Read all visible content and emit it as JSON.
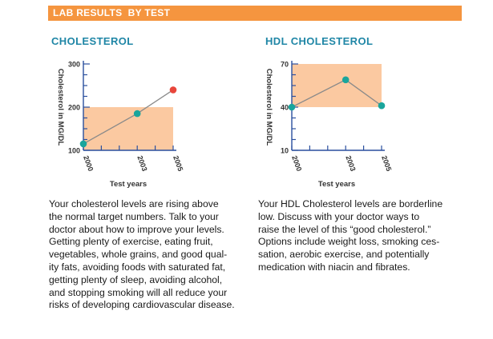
{
  "header": {
    "title": "LAB RESULTS  BY TEST"
  },
  "colors": {
    "banner": "#f5953f",
    "title": "#1f86a6",
    "target_band": "#fbc9a1",
    "axis": "#2a4f9e",
    "normal_point": "#1aa59c",
    "high_point": "#e8463b",
    "line": "#8a8a8a"
  },
  "chart_data": [
    {
      "type": "line",
      "title": "CHOLESTEROL",
      "ylabel": "Cholesterol in MG/DL",
      "xlabel": "Test years",
      "x_ticks": [
        "2000",
        "2003",
        "2005"
      ],
      "y_ticks": [
        "100",
        "200",
        "300"
      ],
      "xlim": [
        2000,
        2005
      ],
      "ylim": [
        100,
        300
      ],
      "target_range": [
        100,
        200
      ],
      "series": [
        {
          "name": "Cholesterol",
          "x": [
            2000,
            2003,
            2005
          ],
          "y": [
            115,
            185,
            240
          ],
          "point_status": [
            "normal",
            "normal",
            "high"
          ]
        }
      ],
      "description": [
        "Your cholesterol levels are rising above",
        "the normal target numbers. Talk to your",
        "doctor about how to improve your levels.",
        "Getting plenty of exercise, eating fruit,",
        "vegetables, whole grains, and good qual-",
        "ity fats, avoiding foods with saturated fat,",
        "getting plenty of sleep, avoiding alcohol,",
        "and stopping smoking will all reduce your",
        "risks of developing cardiovascular disease."
      ]
    },
    {
      "type": "line",
      "title": "HDL CHOLESTEROL",
      "ylabel": "Cholesterol in MG/DL",
      "xlabel": "Test years",
      "x_ticks": [
        "2000",
        "2003",
        "2005"
      ],
      "y_ticks": [
        "10",
        "40",
        "70"
      ],
      "xlim": [
        2000,
        2005
      ],
      "ylim": [
        10,
        70
      ],
      "target_range": [
        40,
        70
      ],
      "series": [
        {
          "name": "HDL Cholesterol",
          "x": [
            2000,
            2003,
            2005
          ],
          "y": [
            40,
            59,
            41
          ],
          "point_status": [
            "normal",
            "normal",
            "normal"
          ]
        }
      ],
      "description": [
        "Your HDL Cholesterol levels are borderline",
        "low. Discuss with your doctor ways to",
        "raise the level of this “good cholesterol.”",
        "Options include weight loss, smoking ces-",
        "sation, aerobic exercise, and potentially",
        "medication with niacin and fibrates."
      ]
    }
  ]
}
